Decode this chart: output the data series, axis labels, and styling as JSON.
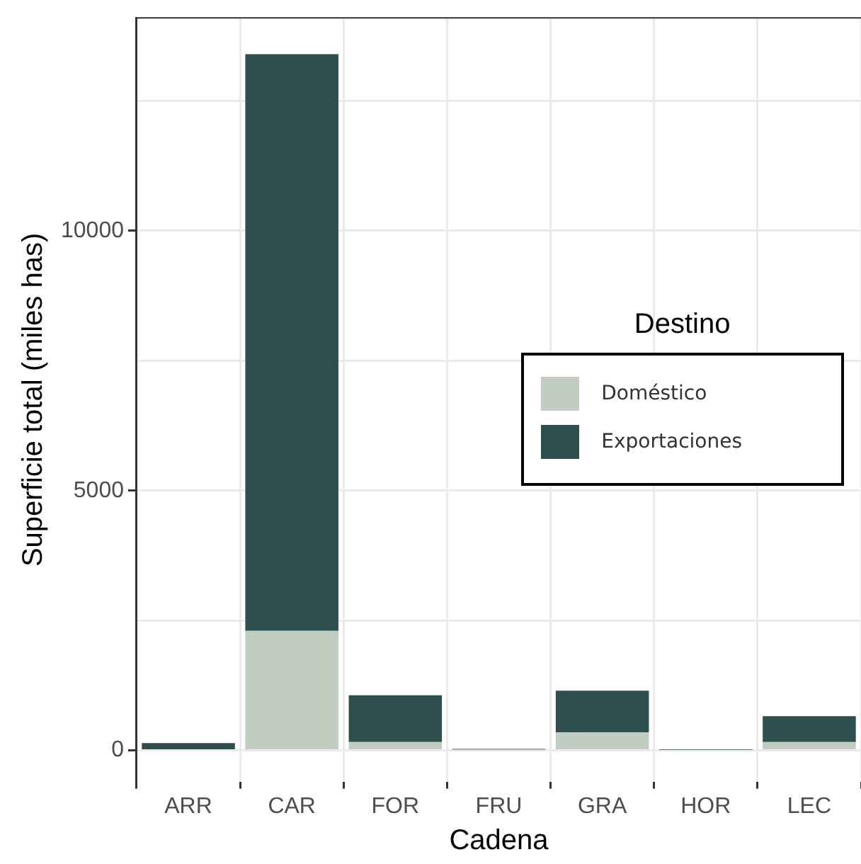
{
  "chart_data": {
    "type": "bar",
    "stacked": true,
    "xlabel": "Cadena",
    "ylabel": "Superficie total (miles has)",
    "legend_title": "Destino",
    "legend": "right",
    "categories": [
      "ARR",
      "CAR",
      "FOR",
      "FRU",
      "GRA",
      "HOR",
      "LEC"
    ],
    "series": [
      {
        "name": "Doméstico",
        "color": "#c2cdc1",
        "values": [
          0,
          2300,
          160,
          10,
          350,
          null,
          160
        ]
      },
      {
        "name": "Exportaciones",
        "color": "#2f4f4f",
        "values": [
          140,
          11100,
          900,
          20,
          800,
          10,
          500
        ]
      }
    ],
    "ylim": [
      -600,
      14100
    ],
    "yticks": [
      0,
      {
        "value": 2500,
        "label": null
      },
      5000,
      {
        "value": 7500,
        "label": null
      },
      10000,
      {
        "value": 12500,
        "label": null
      }
    ],
    "grid": true
  }
}
